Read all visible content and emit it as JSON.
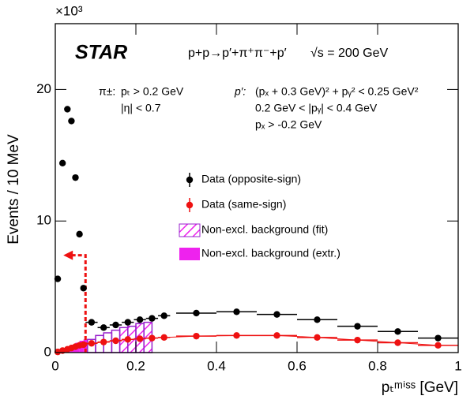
{
  "chart_data": {
    "type": "scatter",
    "title": "STAR",
    "annotations": [
      "p+p→p′+π⁺π⁻+p′",
      "√s = 200 GeV",
      "π±:",
      "pₜ > 0.2 GeV",
      "|η| < 0.7",
      "p′:",
      "(pₓ + 0.3 GeV)² + pᵧ² < 0.25 GeV²",
      "0.2 GeV < |pᵧ| < 0.4 GeV",
      "pₓ > -0.2 GeV"
    ],
    "x_label": "pₜᵐⁱˢˢ [GeV]",
    "y_label": "Events / 10 MeV",
    "y_multiplier": "×10³",
    "xlim": [
      0,
      1
    ],
    "xticks": [
      0,
      0.2,
      0.4,
      0.6,
      0.8,
      1
    ],
    "ylim": [
      0,
      25
    ],
    "yticks": [
      0,
      10,
      20
    ],
    "series": [
      {
        "name": "Data (opposite-sign)",
        "color": "#000000",
        "x": [
          0.006,
          0.018,
          0.03,
          0.04,
          0.05,
          0.06,
          0.07,
          0.09,
          0.12,
          0.15,
          0.18,
          0.21,
          0.24,
          0.27,
          0.35,
          0.45,
          0.55,
          0.65,
          0.75,
          0.85,
          0.95
        ],
        "xerr": [
          0.005,
          0.005,
          0.005,
          0.005,
          0.005,
          0.005,
          0.005,
          0.015,
          0.015,
          0.015,
          0.015,
          0.015,
          0.015,
          0.015,
          0.05,
          0.05,
          0.05,
          0.05,
          0.05,
          0.05,
          0.05
        ],
        "values": [
          5.6,
          14.4,
          18.5,
          17.6,
          13.3,
          9.0,
          4.9,
          2.3,
          1.9,
          2.1,
          2.3,
          2.5,
          2.6,
          2.8,
          3.0,
          3.1,
          2.9,
          2.5,
          2.0,
          1.6,
          1.1
        ]
      },
      {
        "name": "Data (same-sign)",
        "color": "#ee1111",
        "x": [
          0.006,
          0.018,
          0.03,
          0.04,
          0.05,
          0.06,
          0.07,
          0.09,
          0.12,
          0.15,
          0.18,
          0.21,
          0.24,
          0.27,
          0.35,
          0.45,
          0.55,
          0.65,
          0.75,
          0.85,
          0.95
        ],
        "xerr": [
          0.005,
          0.005,
          0.005,
          0.005,
          0.005,
          0.005,
          0.005,
          0.015,
          0.015,
          0.015,
          0.015,
          0.015,
          0.015,
          0.015,
          0.05,
          0.05,
          0.05,
          0.05,
          0.05,
          0.05,
          0.05
        ],
        "values": [
          0.05,
          0.15,
          0.25,
          0.35,
          0.45,
          0.55,
          0.6,
          0.7,
          0.8,
          0.9,
          1.0,
          1.05,
          1.1,
          1.15,
          1.25,
          1.3,
          1.3,
          1.15,
          0.95,
          0.75,
          0.55
        ]
      }
    ],
    "background_fit": {
      "name": "Non-excl. background (fit)",
      "color": "#ee22ee",
      "bins": [
        0.08,
        0.1,
        0.12,
        0.14,
        0.16,
        0.18,
        0.2,
        0.22,
        0.24
      ],
      "values": [
        1.0,
        1.3,
        1.5,
        1.7,
        1.9,
        2.0,
        2.2,
        2.3
      ],
      "fit_range": [
        0.16,
        0.24
      ]
    },
    "background_extr": {
      "name": "Non-excl. background (extr.)",
      "color": "#ee22ee",
      "bins": [
        0,
        0.01,
        0.02,
        0.03,
        0.04,
        0.05,
        0.06,
        0.07,
        0.08
      ],
      "values": [
        0.1,
        0.2,
        0.3,
        0.45,
        0.6,
        0.75,
        0.9,
        1.0
      ]
    },
    "arrow": {
      "color": "#ee1111",
      "x": 0.075,
      "y": 7.4,
      "x_end": 0.02
    }
  }
}
